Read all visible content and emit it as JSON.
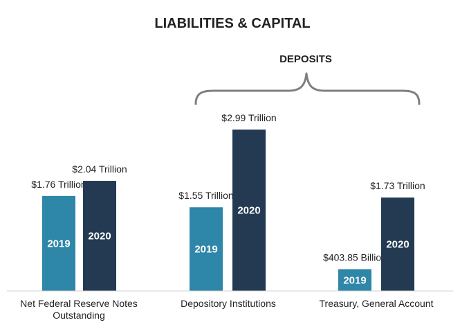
{
  "chart_data": {
    "type": "bar",
    "title": "LIABILITIES & CAPITAL",
    "group_label": "DEPOSITS",
    "categories": [
      [
        "Net Federal Reserve Notes",
        "Outstanding"
      ],
      [
        "Depository Institutions"
      ],
      [
        "Treasury, General Account"
      ]
    ],
    "series": [
      {
        "name": "2019",
        "values": [
          1.76,
          1.55,
          0.40385
        ],
        "labels": [
          "$1.76 Trillion",
          "$1.55 Trillion",
          "$403.85 Billion"
        ]
      },
      {
        "name": "2020",
        "values": [
          2.04,
          2.99,
          1.73
        ],
        "labels": [
          "$2.04 Trillion",
          "$2.99 Trillion",
          "$1.73 Trillion"
        ]
      }
    ],
    "colors": [
      "#2E86A8",
      "#243A53"
    ],
    "axis_color": "#D0D0D0",
    "bracket_color": "#7F7F7F",
    "unit": "Trillions of USD",
    "ylim": [
      0,
      3.2
    ],
    "grid": false,
    "legend": "none"
  }
}
